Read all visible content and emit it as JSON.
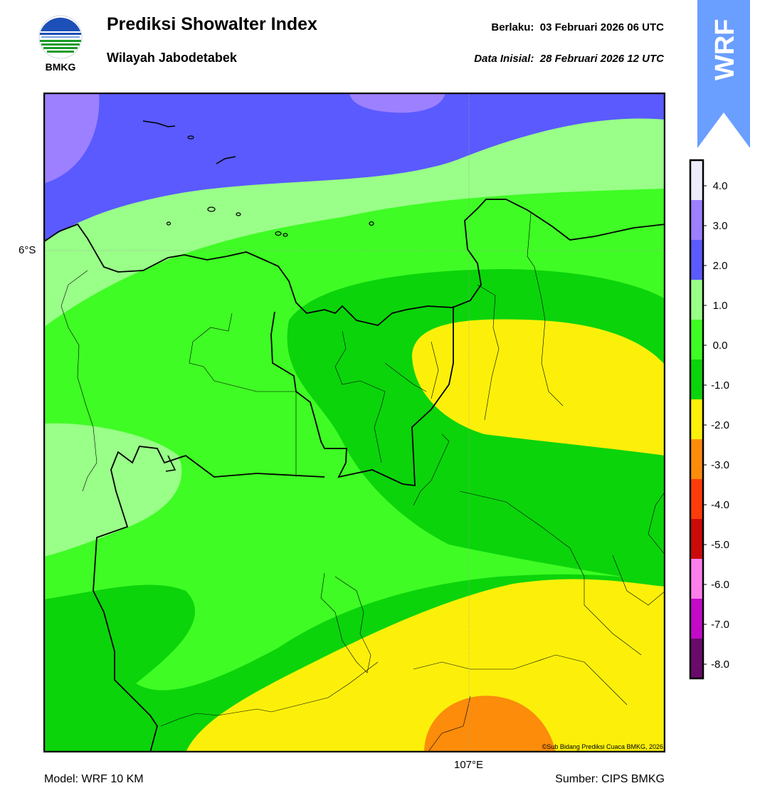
{
  "header": {
    "title": "Prediksi Showalter Index",
    "subtitle": "Wilayah Jabodetabek",
    "valid_label": "Berlaku:",
    "valid_value": "03 Februari 2026 06 UTC",
    "init_label": "Data Inisial:",
    "init_value": "28 Februari 2026 12 UTC"
  },
  "logo": {
    "text": "BMKG",
    "icon": "bmkg-logo"
  },
  "badge": {
    "text": "WRF",
    "color": "#6a9eff"
  },
  "map": {
    "lat_label": "6°S",
    "lon_label": "107°E",
    "copyright": "©Sub Bidang Prediksi Cuaca BMKG, 2026"
  },
  "colorbar": {
    "ticks": [
      "4.0",
      "3.0",
      "2.0",
      "1.0",
      "0.0",
      "-1.0",
      "-2.0",
      "-3.0",
      "-4.0",
      "-5.0",
      "-6.0",
      "-7.0",
      "-8.0"
    ],
    "colors": [
      "#ececfc",
      "#9c80ff",
      "#5a5aff",
      "#99ff88",
      "#3ffc24",
      "#0bd40b",
      "#fcf00a",
      "#fc8c0a",
      "#fc3c0a",
      "#cc0a0a",
      "#fc80ec",
      "#c20ac8",
      "#6a0a6a"
    ]
  },
  "footer": {
    "model": "Model: WRF 10 KM",
    "source": "Sumber: CIPS BMKG"
  }
}
